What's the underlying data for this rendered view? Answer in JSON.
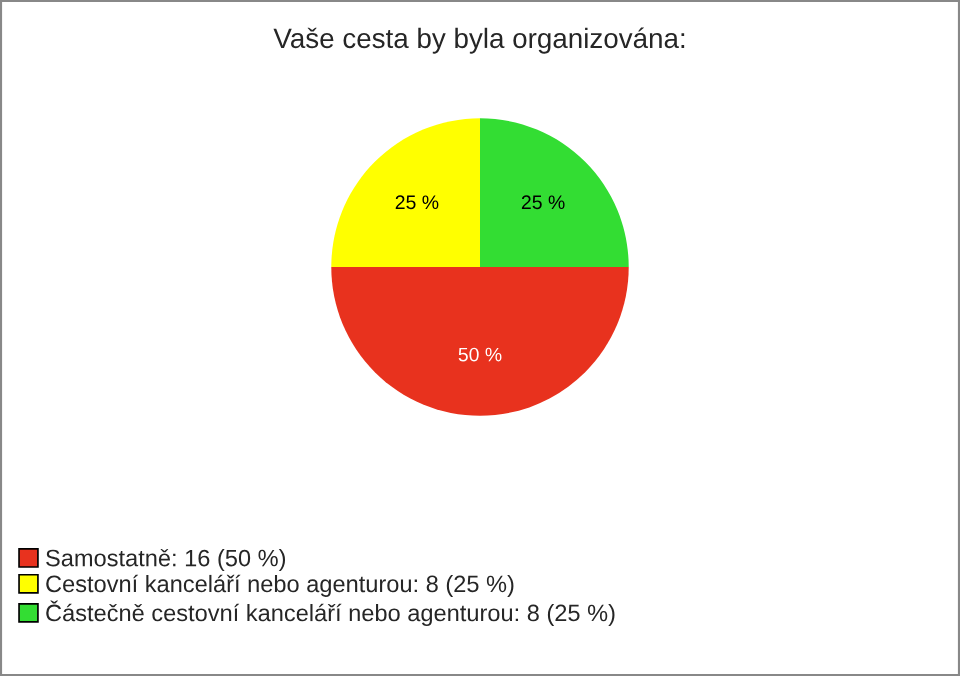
{
  "chart_data": {
    "type": "pie",
    "title": "Vaše cesta by byla organizována:",
    "categories": [
      "Samostatně: 16 (50 %)",
      "Cestovní kanceláří nebo agenturou: 8 (25 %)",
      "Částečně cestovní kanceláří nebo agenturou: 8 (25 %)"
    ],
    "values": [
      50,
      25,
      25
    ],
    "value_labels": [
      "50 %",
      "25 %",
      "25 %"
    ],
    "colors": [
      "#e8321e",
      "#ffff00",
      "#33dd33"
    ],
    "legend": "bottom left"
  }
}
